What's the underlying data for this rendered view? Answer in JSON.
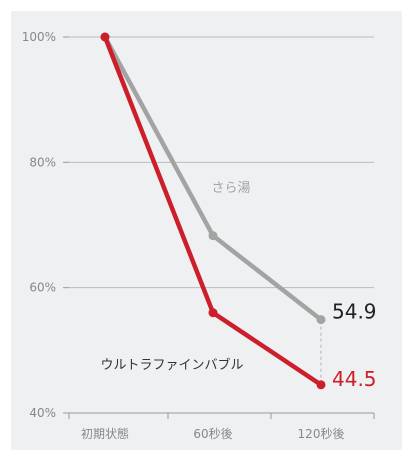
{
  "chart_data": {
    "type": "line",
    "categories": [
      "初期状態",
      "60秒後",
      "120秒後"
    ],
    "y_ticks": [
      "40%",
      "60%",
      "80%",
      "100%"
    ],
    "ylim": [
      40,
      100
    ],
    "grid": true,
    "series": [
      {
        "name": "さら湯",
        "values": [
          100,
          68.3,
          54.9
        ],
        "color": "#a3a3a3",
        "end_label": "54.9",
        "end_label_color": "#222222"
      },
      {
        "name": "ウルトラファインバブル",
        "values": [
          100,
          56,
          44.5
        ],
        "color": "#cc1f2b",
        "end_label": "44.5",
        "end_label_color": "#cc1f2b"
      }
    ]
  }
}
